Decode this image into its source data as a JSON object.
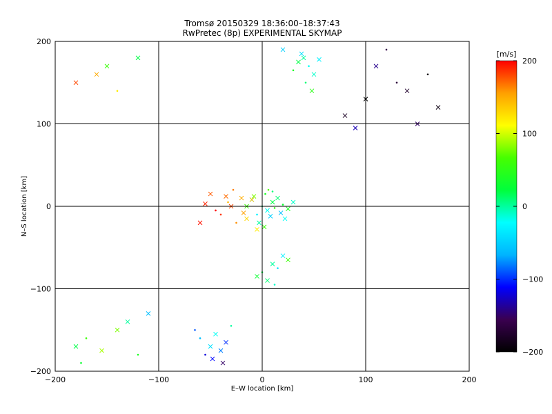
{
  "chart_data": {
    "type": "scatter",
    "title": "Tromsø 20150329 18:36:00–18:37:43",
    "subtitle": "RwPretec (8p) EXPERIMENTAL SKYMAP",
    "xlabel": "E–W location [km]",
    "ylabel": "N–S location [km]",
    "xlim": [
      -200,
      200
    ],
    "ylim": [
      -200,
      200
    ],
    "xticks": [
      "−200",
      "−100",
      "0",
      "100",
      "200"
    ],
    "yticks": [
      "−200",
      "−100",
      "0",
      "100",
      "200"
    ],
    "grid": true,
    "gridlines": [
      -100,
      0,
      100
    ],
    "markers": [
      "x",
      "dot"
    ],
    "colorbar": {
      "label": "[m/s]",
      "min": -200,
      "max": 200,
      "ticks": [
        "−200",
        "−100",
        "0",
        "100",
        "200"
      ],
      "colormap": [
        "#000000",
        "#3a0050",
        "#0000ff",
        "#00b4ff",
        "#00ffff",
        "#00ff3c",
        "#46ff00",
        "#ffff00",
        "#ffa000",
        "#ff0000"
      ]
    },
    "series": [
      {
        "x": [
          0,
          10,
          5,
          20,
          -10,
          25,
          -5,
          15,
          8,
          12,
          -15,
          30,
          3,
          -3,
          18,
          6,
          -8,
          22,
          10,
          2
        ],
        "y": [
          0,
          5,
          -5,
          2,
          8,
          -3,
          -10,
          10,
          -12,
          -2,
          0,
          5,
          15,
          -20,
          -8,
          20,
          12,
          -15,
          18,
          -25
        ],
        "v": [
          0,
          20,
          -20,
          30,
          -40,
          40,
          -30,
          10,
          -50,
          50,
          60,
          -10,
          40,
          0,
          -60,
          70,
          80,
          -20,
          10,
          60
        ]
      },
      {
        "x": [
          -30,
          -20,
          -45,
          -15,
          -35,
          -25,
          -55,
          -10,
          -40,
          -5,
          -50,
          -28,
          -18,
          -60,
          -33
        ],
        "y": [
          0,
          10,
          -5,
          -15,
          12,
          -20,
          3,
          8,
          -10,
          -28,
          15,
          20,
          -8,
          -20,
          5
        ],
        "v": [
          180,
          150,
          200,
          130,
          170,
          160,
          190,
          140,
          185,
          120,
          175,
          165,
          155,
          195,
          145
        ]
      },
      {
        "x": [
          40,
          45,
          35,
          50,
          42,
          38,
          55,
          30,
          48,
          20
        ],
        "y": [
          180,
          170,
          175,
          160,
          150,
          185,
          178,
          165,
          140,
          190
        ],
        "v": [
          0,
          -20,
          20,
          -10,
          10,
          -40,
          -30,
          40,
          50,
          -50
        ]
      },
      {
        "x": [
          -60,
          -50,
          -40,
          -55,
          -45,
          -35,
          -65,
          -48,
          -38,
          -30
        ],
        "y": [
          -160,
          -170,
          -175,
          -180,
          -155,
          -165,
          -150,
          -185,
          -190,
          -145
        ],
        "v": [
          -60,
          -40,
          -80,
          -120,
          -20,
          -100,
          -90,
          -110,
          -150,
          0
        ]
      },
      {
        "x": [
          80,
          100,
          120,
          150,
          170,
          130,
          110,
          90,
          160,
          140
        ],
        "y": [
          110,
          130,
          190,
          100,
          120,
          150,
          170,
          95,
          160,
          140
        ],
        "v": [
          -180,
          -200,
          -160,
          -150,
          -190,
          -170,
          -140,
          -130,
          -195,
          -175
        ]
      },
      {
        "x": [
          10,
          0,
          20,
          5,
          15,
          -5,
          25,
          12
        ],
        "y": [
          -70,
          -80,
          -60,
          -90,
          -75,
          -85,
          -65,
          -95
        ],
        "v": [
          0,
          20,
          -30,
          10,
          -40,
          30,
          60,
          -10
        ]
      },
      {
        "x": [
          -170,
          -140,
          -180,
          -120,
          -155,
          -110,
          -175,
          -130
        ],
        "y": [
          -160,
          -150,
          -170,
          -180,
          -175,
          -130,
          -190,
          -140
        ],
        "v": [
          60,
          80,
          20,
          40,
          90,
          -60,
          30,
          0
        ]
      },
      {
        "x": [
          -180,
          -160,
          -140,
          -120,
          -150
        ],
        "y": [
          150,
          160,
          140,
          180,
          170
        ],
        "v": [
          180,
          150,
          120,
          20,
          60
        ]
      }
    ]
  }
}
